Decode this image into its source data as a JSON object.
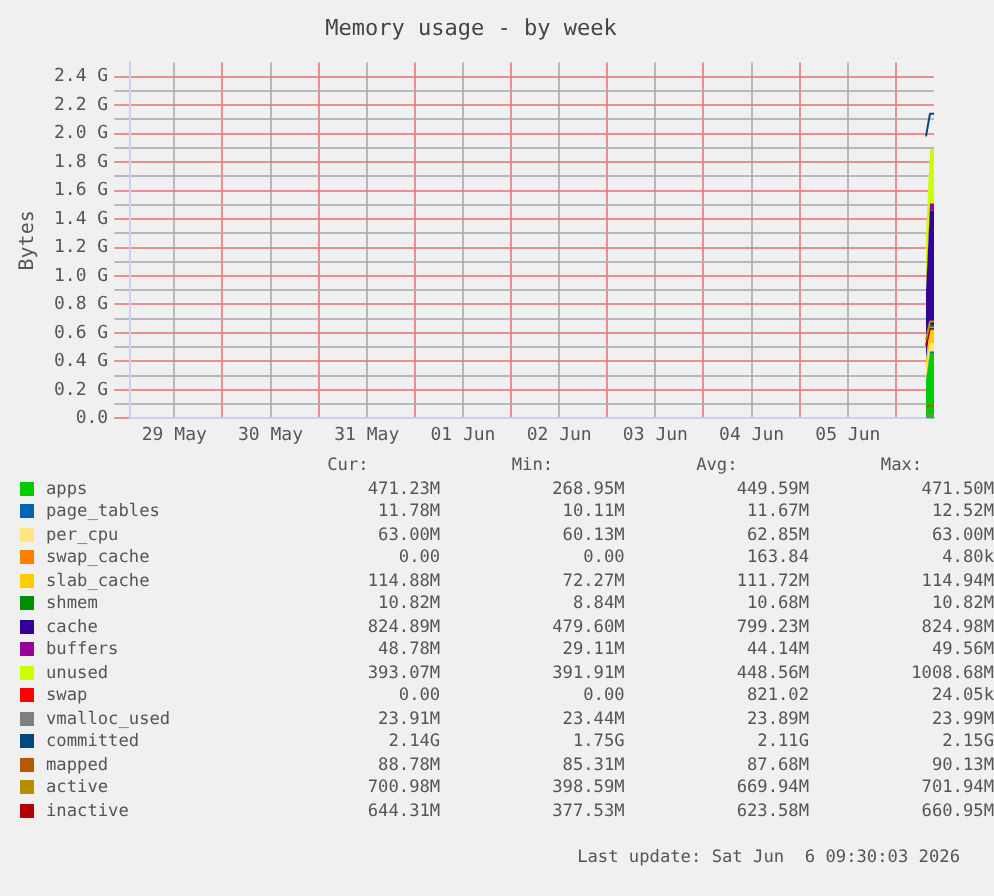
{
  "chart_data": {
    "type": "area",
    "title": "Memory usage - by week",
    "ylabel": "Bytes",
    "x": [
      "2026-06-06T07:30",
      "2026-06-06T08:30",
      "2026-06-06T09:30"
    ],
    "xlim": [
      "2026-05-29T01:00",
      "2026-06-06T09:30"
    ],
    "xticks": [
      {
        "value": "2026-05-29T12:00",
        "label": "29 May"
      },
      {
        "value": "2026-05-30T00:00",
        "label": null
      },
      {
        "value": "2026-05-30T12:00",
        "label": "30 May"
      },
      {
        "value": "2026-05-31T00:00",
        "label": null
      },
      {
        "value": "2026-05-31T12:00",
        "label": "31 May"
      },
      {
        "value": "2026-06-01T00:00",
        "label": null
      },
      {
        "value": "2026-06-01T12:00",
        "label": "01 Jun"
      },
      {
        "value": "2026-06-02T00:00",
        "label": null
      },
      {
        "value": "2026-06-02T12:00",
        "label": "02 Jun"
      },
      {
        "value": "2026-06-03T00:00",
        "label": null
      },
      {
        "value": "2026-06-03T12:00",
        "label": "03 Jun"
      },
      {
        "value": "2026-06-04T00:00",
        "label": null
      },
      {
        "value": "2026-06-04T12:00",
        "label": "04 Jun"
      },
      {
        "value": "2026-06-05T00:00",
        "label": null
      },
      {
        "value": "2026-06-05T12:00",
        "label": "05 Jun"
      },
      {
        "value": "2026-06-06T00:00",
        "label": null
      }
    ],
    "ylim": [
      0,
      2.5
    ],
    "yticks": [
      {
        "value": 0,
        "label": "0.0"
      },
      {
        "value": 0.1,
        "label": null
      },
      {
        "value": 0.2,
        "label": "0.2 G"
      },
      {
        "value": 0.3,
        "label": null
      },
      {
        "value": 0.4,
        "label": "0.4 G"
      },
      {
        "value": 0.5,
        "label": null
      },
      {
        "value": 0.6,
        "label": "0.6 G"
      },
      {
        "value": 0.7,
        "label": null
      },
      {
        "value": 0.8,
        "label": "0.8 G"
      },
      {
        "value": 0.9,
        "label": null
      },
      {
        "value": 1.0,
        "label": "1.0 G"
      },
      {
        "value": 1.1,
        "label": null
      },
      {
        "value": 1.2,
        "label": "1.2 G"
      },
      {
        "value": 1.3,
        "label": null
      },
      {
        "value": 1.4,
        "label": "1.4 G"
      },
      {
        "value": 1.5,
        "label": null
      },
      {
        "value": 1.6,
        "label": "1.6 G"
      },
      {
        "value": 1.7,
        "label": null
      },
      {
        "value": 1.8,
        "label": "1.8 G"
      },
      {
        "value": 1.9,
        "label": null
      },
      {
        "value": 2.0,
        "label": "2.0 G"
      },
      {
        "value": 2.1,
        "label": null
      },
      {
        "value": 2.2,
        "label": "2.2 G"
      },
      {
        "value": 2.3,
        "label": null
      },
      {
        "value": 2.4,
        "label": "2.4 G"
      }
    ],
    "stacked": true,
    "grid": true,
    "legend": "bottom",
    "marker": "none",
    "series": [
      {
        "name": "apps",
        "color": "#00cc00",
        "values": [
          0.26,
          0.46,
          0.46
        ]
      },
      {
        "name": "page_tables",
        "color": "#0066b3",
        "values": [
          0.01,
          0.01,
          0.01
        ]
      },
      {
        "name": "per_cpu",
        "color": "#ffe680",
        "values": [
          0.06,
          0.06,
          0.06
        ]
      },
      {
        "name": "swap_cache",
        "color": "#ff8000",
        "values": [
          null,
          null,
          null
        ]
      },
      {
        "name": "slab_cache",
        "color": "#ffcc00",
        "values": [
          0.07,
          0.11,
          0.11
        ]
      },
      {
        "name": "shmem",
        "color": "#008f00",
        "values": [
          0.01,
          0.01,
          0.01
        ]
      },
      {
        "name": "cache",
        "color": "#330099",
        "values": [
          0.47,
          0.81,
          0.81
        ]
      },
      {
        "name": "buffers",
        "color": "#990099",
        "values": [
          0.03,
          0.05,
          0.05
        ]
      },
      {
        "name": "unused",
        "color": "#ccff00",
        "values": [
          0.38,
          0.38,
          0.38
        ]
      },
      {
        "name": "swap",
        "color": "#ff0000",
        "values": [
          null,
          null,
          null
        ]
      },
      {
        "name": "vmalloc_used",
        "type": "line",
        "color": "#808080",
        "values": [
          0.02,
          0.02,
          0.02
        ]
      },
      {
        "name": "committed",
        "type": "line",
        "color": "#00487d",
        "values": [
          1.98,
          2.14,
          2.14
        ]
      },
      {
        "name": "mapped",
        "type": "line",
        "color": "#b35a00",
        "values": [
          0.08,
          0.09,
          0.09
        ]
      },
      {
        "name": "active",
        "type": "line",
        "color": "#b38f00",
        "values": [
          0.55,
          0.68,
          0.68
        ]
      },
      {
        "name": "inactive",
        "type": "line",
        "color": "#b30000",
        "values": [
          0.51,
          0.63,
          0.63
        ]
      }
    ],
    "annotations": [
      "Cur:",
      "Min:",
      "Avg:",
      "Max:",
      "471.23M",
      "268.95M",
      "449.59M",
      "471.50M",
      "11.78M",
      "10.11M",
      "11.67M",
      "12.52M",
      "63.00M",
      "60.13M",
      "62.85M",
      "63.00M",
      "0.00",
      "0.00",
      "163.84",
      "4.80k",
      "114.88M",
      "72.27M",
      "111.72M",
      "114.94M",
      "10.82M",
      "8.84M",
      "10.68M",
      "10.82M",
      "824.89M",
      "479.60M",
      "799.23M",
      "824.98M",
      "48.78M",
      "29.11M",
      "44.14M",
      "49.56M",
      "393.07M",
      "391.91M",
      "448.56M",
      "1008.68M",
      "0.00",
      "0.00",
      "821.02",
      "24.05k",
      "23.91M",
      "23.44M",
      "23.89M",
      "23.99M",
      "2.14G",
      "1.75G",
      "2.11G",
      "2.15G",
      "88.78M",
      "85.31M",
      "87.68M",
      "90.13M",
      "700.98M",
      "398.59M",
      "669.94M",
      "701.94M",
      "644.31M",
      "377.53M",
      "623.58M",
      "660.95M",
      "Last update: Sat Jun  6 09:30:03 2026"
    ]
  }
}
